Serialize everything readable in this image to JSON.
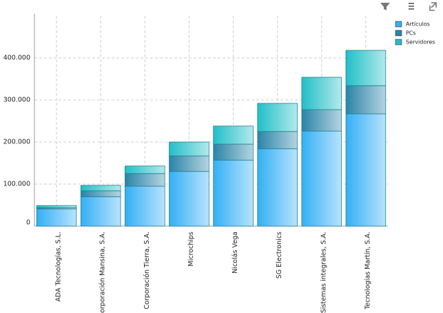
{
  "chart_data": {
    "type": "stacked_bar",
    "categories": [
      "ADA Tecnologías, S.L.",
      "Corporación Mansina, S.A.",
      "Corporación Tierra, S.A.",
      "Microchips",
      "Nicolás Vega",
      "SG Electronics",
      "Sistemas integrales, S.A.",
      "Tecnologías Martín, S.A."
    ],
    "series": [
      {
        "name": "Artículos",
        "color": "#33b0f5",
        "values": [
          41000,
          70000,
          95000,
          130000,
          157000,
          184000,
          226000,
          267000
        ]
      },
      {
        "name": "PCs",
        "color": "#2a84a8",
        "values": [
          3000,
          14000,
          30000,
          37000,
          38000,
          41000,
          51000,
          67000
        ]
      },
      {
        "name": "Servidores",
        "color": "#22bfc8",
        "values": [
          5000,
          13000,
          18000,
          33000,
          43000,
          67000,
          77000,
          84000
        ]
      }
    ],
    "ylim": [
      0,
      500000
    ],
    "yticks": [
      0,
      {
        "value": 100000,
        "label": "100.000"
      },
      {
        "value": 200000,
        "label": "200.000"
      },
      {
        "value": 300000,
        "label": "300.000"
      },
      {
        "value": 400000,
        "label": "400.000"
      }
    ],
    "grid": true,
    "legend": "top-right"
  }
}
